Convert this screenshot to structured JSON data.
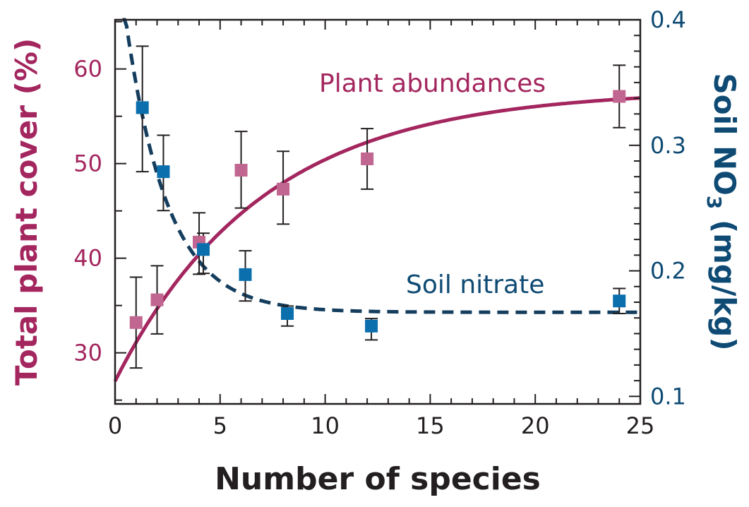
{
  "chart_data": {
    "type": "scatter",
    "xlabel": "Number of species",
    "ylabel_left": "Total plant cover (%)",
    "ylabel_right_main": "Soil NO",
    "ylabel_right_sub": "3",
    "ylabel_right_unit": " (mg/kg)",
    "xlim": [
      0,
      25
    ],
    "ylim_left": [
      24.6,
      65.2
    ],
    "ylim_right": [
      0.094,
      0.4
    ],
    "x_ticks": [
      "0",
      "5",
      "10",
      "15",
      "20",
      "25"
    ],
    "y_left_ticks": [
      "30",
      "40",
      "50",
      "60"
    ],
    "y_right_ticks": [
      "0.1",
      "0.2",
      "0.3",
      "0.4"
    ],
    "grid": false,
    "colors": {
      "plant_line": "#a3265e",
      "plant_marker": "#c06690",
      "nitrate_line": "#143d5e",
      "nitrate_marker": "#0b6fae",
      "axis": "#231f20"
    },
    "series": [
      {
        "name": "Plant abundances",
        "axis": "left",
        "x": [
          1,
          2,
          4,
          6,
          8,
          12,
          24
        ],
        "y": [
          33.2,
          35.6,
          41.7,
          49.3,
          47.3,
          50.5,
          57.1
        ],
        "err_low": [
          28.4,
          32.0,
          38.3,
          45.3,
          43.6,
          47.3,
          53.8
        ],
        "err_high": [
          38.0,
          39.2,
          44.8,
          53.4,
          51.3,
          53.7,
          60.4
        ],
        "fit": {
          "form": "saturating-exponential",
          "y0": 27,
          "ymax": 57.8,
          "tau": 7
        }
      },
      {
        "name": "Soil nitrate",
        "axis": "right",
        "x": [
          1.3,
          2.3,
          4.2,
          6.2,
          8.2,
          12.2,
          24
        ],
        "y": [
          0.33,
          0.279,
          0.217,
          0.197,
          0.166,
          0.156,
          0.176
        ],
        "err_low": [
          0.279,
          0.248,
          0.198,
          0.176,
          0.156,
          0.145,
          0.166
        ],
        "err_high": [
          0.379,
          0.308,
          0.23,
          0.216,
          0.172,
          0.162,
          0.186
        ],
        "fit": {
          "form": "decaying-exponential",
          "asymptote": 0.167,
          "amplitude": 0.3,
          "tau": 2
        }
      }
    ]
  }
}
